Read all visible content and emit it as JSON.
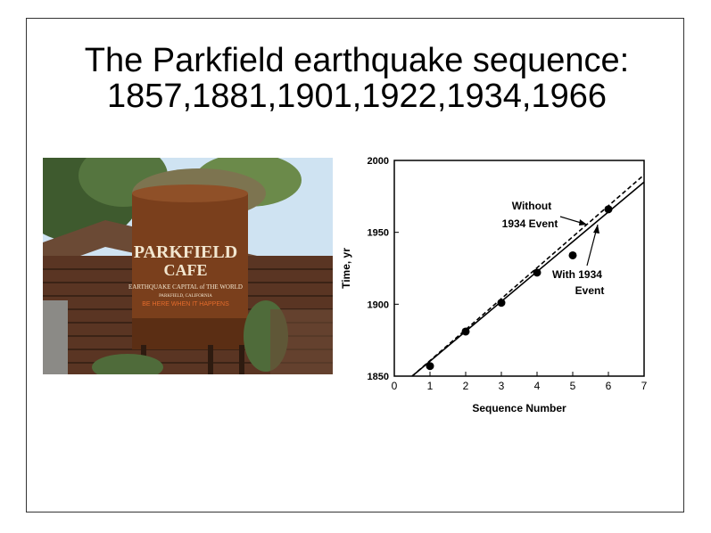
{
  "slide": {
    "title_line1": "The Parkfield earthquake sequence:",
    "title_line2": "1857,1881,1901,1922,1934,1966"
  },
  "photo": {
    "sign_line1": "PARKFIELD",
    "sign_line2": "CAFE",
    "sign_line3": "EARTHQUAKE CAPITAL of THE WORLD",
    "sign_line4": "PARKFIELD, CALIFORNIA",
    "sign_line5": "BE HERE WHEN IT HAPPENS",
    "colors": {
      "sky": "#cfe3f2",
      "rust": "#7a3f1c",
      "logs": "#5a3523",
      "foliage": "#4f6b3a",
      "sign_text": "#f2e6cf",
      "sign_accent": "#e36b2c"
    }
  },
  "chart_data": {
    "type": "scatter",
    "xlabel": "Sequence  Number",
    "ylabel": "Time, yr",
    "xlim": [
      0,
      7
    ],
    "ylim": [
      1850,
      2000
    ],
    "xticks": [
      0,
      1,
      2,
      3,
      4,
      5,
      6,
      7
    ],
    "yticks": [
      1850,
      1900,
      1950,
      2000
    ],
    "grid": false,
    "points": [
      {
        "x": 1,
        "y": 1857
      },
      {
        "x": 2,
        "y": 1881
      },
      {
        "x": 3,
        "y": 1901
      },
      {
        "x": 4,
        "y": 1922
      },
      {
        "x": 5,
        "y": 1934
      },
      {
        "x": 6,
        "y": 1966
      }
    ],
    "lines": [
      {
        "name": "With 1934 Event",
        "style": "solid",
        "x": [
          0.5,
          7
        ],
        "y": [
          1850,
          1985
        ]
      },
      {
        "name": "Without 1934 Event",
        "style": "dashed",
        "x": [
          0.5,
          7
        ],
        "y": [
          1850,
          1990
        ]
      }
    ],
    "annotations": [
      {
        "line1": "Without",
        "line2": "1934   Event",
        "target_x": 5.3,
        "target_y": 1956
      },
      {
        "line1": "With   1934",
        "line2": "Event",
        "target_x": 5.6,
        "target_y": 1955
      }
    ]
  }
}
